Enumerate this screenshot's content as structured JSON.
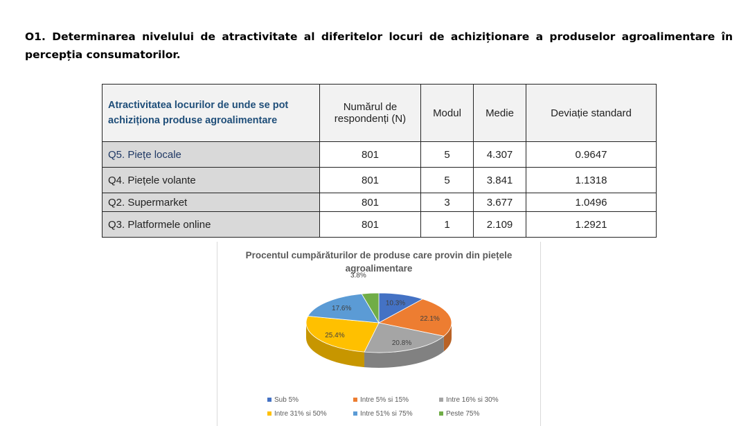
{
  "heading": "O1. Determinarea nivelului de atractivitate al diferitelor locuri de achiziționare a produselor agroalimentare în percepția consumatorilor.",
  "table": {
    "headers": [
      "Atractivitatea locurilor de unde se pot achiziționa produse agroalimentare",
      "Numărul de respondenți  (N)",
      "Modul",
      "Medie",
      "Deviație standard"
    ],
    "rows": [
      {
        "label": "Q5. Piețe locale",
        "n": "801",
        "mode": "5",
        "mean": "4.307",
        "sd": "0.9647"
      },
      {
        "label": "Q4. Piețele volante",
        "n": "801",
        "mode": "5",
        "mean": "3.841",
        "sd": "1.1318"
      },
      {
        "label": "Q2.  Supermarket",
        "n": "801",
        "mode": "3",
        "mean": "3.677",
        "sd": "1.0496"
      },
      {
        "label": "Q3. Platformele online",
        "n": "801",
        "mode": "1",
        "mean": "2.109",
        "sd": "1.2921"
      }
    ]
  },
  "chart_data": {
    "type": "pie",
    "title": "Procentul cumpărăturilor  de produse care provin din piețele agroalimentare",
    "categories": [
      "Sub 5%",
      "Intre 5% si 15%",
      "Intre 16% si 30%",
      "Intre 31% si 50%",
      "Intre 51% si 75%",
      "Peste 75%"
    ],
    "values": [
      10.3,
      22.1,
      20.8,
      25.4,
      17.6,
      3.8
    ],
    "labels": [
      "10.3%",
      "22.1%",
      "20.8%",
      "25.4%",
      "17.6%",
      "3.8%"
    ],
    "colors": [
      "#4472c4",
      "#ed7d31",
      "#a5a5a5",
      "#ffc000",
      "#5b9bd5",
      "#70ad47"
    ],
    "legend_position": "bottom"
  }
}
